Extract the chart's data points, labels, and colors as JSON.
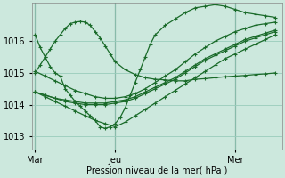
{
  "xlabel": "Pression niveau de la mer( hPa )",
  "bg_color": "#cce8dd",
  "grid_color": "#99ccbb",
  "line_color": "#1a6b2a",
  "marker": "+",
  "markersize": 3,
  "linewidth": 0.9,
  "x_tick_labels": [
    "Mar",
    "Jeu",
    "Mer"
  ],
  "x_tick_pos": [
    0,
    48,
    120
  ],
  "xlim": [
    -2,
    148
  ],
  "ylim": [
    1012.6,
    1017.2
  ],
  "yticks": [
    1013,
    1014,
    1015,
    1016
  ],
  "series": [
    {
      "x": [
        0,
        3,
        6,
        9,
        12,
        15,
        18,
        21,
        24,
        27,
        30,
        33,
        36,
        39,
        42,
        45,
        48,
        51,
        54,
        57,
        60,
        63,
        66,
        69,
        72,
        78,
        84,
        90,
        96,
        102,
        108,
        114,
        120,
        126,
        132,
        138,
        144
      ],
      "y": [
        1016.2,
        1015.8,
        1015.5,
        1015.2,
        1015.0,
        1014.9,
        1014.5,
        1014.3,
        1014.1,
        1013.95,
        1013.8,
        1013.65,
        1013.5,
        1013.3,
        1013.25,
        1013.3,
        1013.4,
        1013.6,
        1013.9,
        1014.3,
        1014.7,
        1015.1,
        1015.5,
        1015.9,
        1016.2,
        1016.5,
        1016.7,
        1016.9,
        1017.05,
        1017.1,
        1017.15,
        1017.1,
        1017.0,
        1016.9,
        1016.85,
        1016.8,
        1016.75
      ]
    },
    {
      "x": [
        0,
        6,
        12,
        18,
        24,
        30,
        36,
        42,
        48,
        54,
        60,
        66,
        72,
        78,
        84,
        90,
        96,
        102,
        108,
        114,
        120,
        126,
        132,
        138,
        144
      ],
      "y": [
        1015.05,
        1014.9,
        1014.75,
        1014.6,
        1014.45,
        1014.35,
        1014.25,
        1014.2,
        1014.2,
        1014.25,
        1014.35,
        1014.5,
        1014.7,
        1014.9,
        1015.1,
        1015.35,
        1015.6,
        1015.8,
        1016.0,
        1016.15,
        1016.3,
        1016.4,
        1016.5,
        1016.55,
        1016.6
      ]
    },
    {
      "x": [
        0,
        6,
        12,
        18,
        24,
        30,
        36,
        42,
        48,
        54,
        60,
        66,
        72,
        78,
        84,
        90,
        96,
        102,
        108,
        114,
        120,
        126,
        132,
        138,
        144
      ],
      "y": [
        1014.4,
        1014.3,
        1014.2,
        1014.15,
        1014.1,
        1014.05,
        1014.05,
        1014.05,
        1014.1,
        1014.15,
        1014.25,
        1014.4,
        1014.55,
        1014.7,
        1014.85,
        1015.05,
        1015.25,
        1015.45,
        1015.6,
        1015.75,
        1015.9,
        1016.05,
        1016.15,
        1016.25,
        1016.35
      ]
    },
    {
      "x": [
        0,
        6,
        12,
        18,
        24,
        30,
        36,
        42,
        48,
        54,
        60,
        66,
        72,
        78,
        84,
        90,
        96,
        102,
        108,
        114,
        120,
        126,
        132,
        138,
        144
      ],
      "y": [
        1014.4,
        1014.3,
        1014.2,
        1014.1,
        1014.05,
        1014.0,
        1014.0,
        1014.0,
        1014.05,
        1014.1,
        1014.2,
        1014.35,
        1014.5,
        1014.65,
        1014.8,
        1015.0,
        1015.2,
        1015.4,
        1015.55,
        1015.7,
        1015.85,
        1016.0,
        1016.1,
        1016.2,
        1016.3
      ]
    },
    {
      "x": [
        0,
        6,
        12,
        18,
        24,
        30,
        36,
        42,
        48,
        54,
        60,
        66,
        72,
        78,
        84,
        90,
        96,
        102,
        108,
        114,
        120,
        126,
        132,
        138,
        144
      ],
      "y": [
        1014.4,
        1014.25,
        1014.1,
        1013.95,
        1013.8,
        1013.65,
        1013.5,
        1013.4,
        1013.3,
        1013.45,
        1013.65,
        1013.85,
        1014.05,
        1014.25,
        1014.45,
        1014.65,
        1014.85,
        1015.05,
        1015.25,
        1015.45,
        1015.6,
        1015.75,
        1015.9,
        1016.05,
        1016.2
      ]
    },
    {
      "x": [
        0,
        3,
        6,
        9,
        12,
        15,
        18,
        21,
        24,
        27,
        30,
        33,
        36,
        39,
        42,
        45,
        48,
        54,
        60,
        66,
        72,
        78,
        84,
        90,
        96,
        102,
        108,
        114,
        120,
        126,
        132,
        138,
        144
      ],
      "y": [
        1015.0,
        1015.25,
        1015.5,
        1015.75,
        1016.0,
        1016.2,
        1016.4,
        1016.55,
        1016.6,
        1016.62,
        1016.6,
        1016.5,
        1016.3,
        1016.1,
        1015.85,
        1015.6,
        1015.35,
        1015.1,
        1014.95,
        1014.85,
        1014.8,
        1014.78,
        1014.75,
        1014.75,
        1014.8,
        1014.82,
        1014.85,
        1014.88,
        1014.9,
        1014.92,
        1014.95,
        1014.97,
        1015.0
      ]
    }
  ],
  "vlines": [
    0,
    48,
    120
  ]
}
